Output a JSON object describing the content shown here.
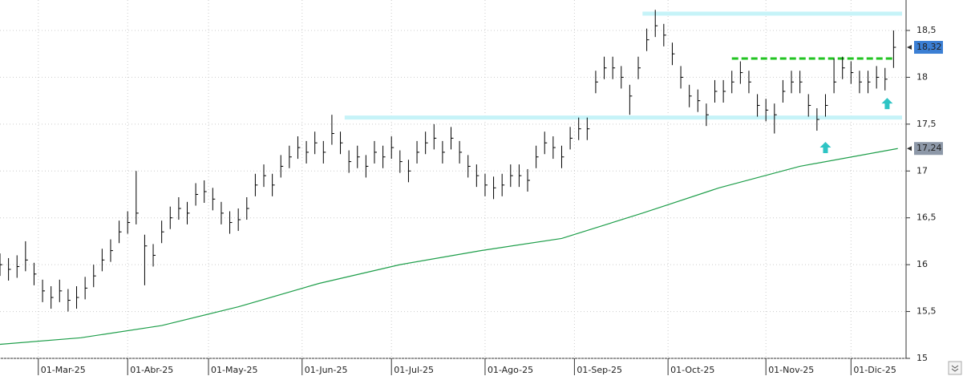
{
  "chart_data": {
    "type": "ohlc",
    "xlim": [
      0,
      212
    ],
    "ylim": [
      15,
      18.825
    ],
    "grid": true,
    "xticks": [
      {
        "value": 9,
        "label": "01-Mar-25"
      },
      {
        "value": 30,
        "label": "01-Abr-25"
      },
      {
        "value": 49,
        "label": "01-May-25"
      },
      {
        "value": 71,
        "label": "01-Jun-25"
      },
      {
        "value": 92,
        "label": "01-Jul-25"
      },
      {
        "value": 114,
        "label": "01-Ago-25"
      },
      {
        "value": 135,
        "label": "01-Sep-25"
      },
      {
        "value": 157,
        "label": "01-Oct-25"
      },
      {
        "value": 180,
        "label": "01-Nov-25"
      },
      {
        "value": 200,
        "label": "01-Dic-25"
      }
    ],
    "yticks": [
      15,
      {
        "value": 15.5,
        "label": "15,5"
      },
      16,
      {
        "value": 16.5,
        "label": "16,5"
      },
      17,
      {
        "value": 17.5,
        "label": "17,5"
      },
      18,
      {
        "value": 18.5,
        "label": "18,5"
      }
    ],
    "bars": {
      "color": "#000000",
      "x": [
        0,
        2,
        4,
        6,
        8,
        10,
        12,
        14,
        16,
        18,
        20,
        22,
        24,
        26,
        28,
        30,
        32,
        34,
        36,
        38,
        40,
        42,
        44,
        46,
        48,
        50,
        52,
        54,
        56,
        58,
        60,
        62,
        64,
        66,
        68,
        70,
        72,
        74,
        76,
        78,
        80,
        82,
        84,
        86,
        88,
        90,
        92,
        94,
        96,
        98,
        100,
        102,
        104,
        106,
        108,
        110,
        112,
        114,
        116,
        118,
        120,
        122,
        124,
        126,
        128,
        130,
        132,
        134,
        136,
        138,
        140,
        142,
        144,
        146,
        148,
        150,
        152,
        154,
        156,
        158,
        160,
        162,
        164,
        166,
        168,
        170,
        172,
        174,
        176,
        178,
        180,
        182,
        184,
        186,
        188,
        190,
        192,
        194,
        196,
        198,
        200,
        202,
        204,
        206,
        208,
        210
      ],
      "high": [
        16.12,
        16.07,
        16.1,
        16.25,
        16.02,
        15.84,
        15.77,
        15.84,
        15.74,
        15.77,
        15.87,
        16.0,
        16.17,
        16.27,
        16.47,
        16.57,
        17.0,
        16.32,
        16.22,
        16.47,
        16.62,
        16.72,
        16.67,
        16.87,
        16.9,
        16.82,
        16.67,
        16.57,
        16.6,
        16.72,
        16.97,
        17.07,
        16.97,
        17.17,
        17.27,
        17.37,
        17.32,
        17.42,
        17.32,
        17.6,
        17.42,
        17.22,
        17.27,
        17.17,
        17.32,
        17.27,
        17.37,
        17.22,
        17.12,
        17.32,
        17.42,
        17.5,
        17.32,
        17.47,
        17.32,
        17.17,
        17.07,
        16.97,
        16.94,
        16.97,
        17.07,
        17.07,
        17.02,
        17.27,
        17.42,
        17.37,
        17.27,
        17.47,
        17.57,
        17.57,
        18.07,
        18.22,
        18.22,
        18.12,
        17.92,
        18.22,
        18.52,
        18.72,
        18.57,
        18.37,
        18.12,
        17.92,
        17.87,
        17.72,
        17.97,
        17.97,
        18.07,
        18.17,
        18.07,
        17.82,
        17.77,
        17.72,
        17.97,
        18.07,
        18.07,
        17.82,
        17.67,
        17.82,
        18.2,
        18.22,
        18.17,
        18.07,
        18.07,
        18.12,
        18.1,
        18.5
      ],
      "low": [
        15.88,
        15.83,
        15.86,
        15.93,
        15.78,
        15.6,
        15.53,
        15.6,
        15.5,
        15.53,
        15.63,
        15.76,
        15.93,
        16.03,
        16.23,
        16.33,
        16.43,
        15.78,
        15.98,
        16.23,
        16.38,
        16.48,
        16.43,
        16.63,
        16.66,
        16.58,
        16.43,
        16.33,
        16.36,
        16.48,
        16.73,
        16.83,
        16.73,
        16.93,
        17.03,
        17.13,
        17.08,
        17.18,
        17.08,
        17.28,
        17.18,
        16.98,
        17.03,
        16.93,
        17.08,
        17.03,
        17.13,
        16.98,
        16.88,
        17.08,
        17.18,
        17.23,
        17.08,
        17.23,
        17.08,
        16.93,
        16.83,
        16.73,
        16.7,
        16.73,
        16.83,
        16.83,
        16.78,
        17.03,
        17.18,
        17.13,
        17.03,
        17.23,
        17.33,
        17.33,
        17.83,
        17.98,
        17.98,
        17.88,
        17.6,
        17.98,
        18.28,
        18.43,
        18.33,
        18.13,
        17.88,
        17.68,
        17.63,
        17.48,
        17.73,
        17.73,
        17.83,
        17.93,
        17.83,
        17.58,
        17.53,
        17.4,
        17.73,
        17.83,
        17.83,
        17.58,
        17.43,
        17.58,
        17.83,
        17.98,
        17.93,
        17.83,
        17.83,
        17.88,
        17.86,
        18.1
      ],
      "close": [
        16.0,
        15.95,
        15.98,
        16.05,
        15.9,
        15.72,
        15.65,
        15.72,
        15.62,
        15.65,
        15.75,
        15.88,
        16.05,
        16.15,
        16.35,
        16.45,
        16.55,
        16.2,
        16.1,
        16.35,
        16.5,
        16.6,
        16.55,
        16.75,
        16.78,
        16.7,
        16.55,
        16.45,
        16.48,
        16.6,
        16.85,
        16.95,
        16.85,
        17.05,
        17.15,
        17.25,
        17.2,
        17.3,
        17.2,
        17.4,
        17.3,
        17.1,
        17.15,
        17.05,
        17.2,
        17.15,
        17.25,
        17.1,
        17.0,
        17.2,
        17.3,
        17.35,
        17.2,
        17.35,
        17.2,
        17.05,
        16.95,
        16.85,
        16.82,
        16.85,
        16.95,
        16.95,
        16.9,
        17.15,
        17.3,
        17.25,
        17.15,
        17.35,
        17.45,
        17.45,
        17.95,
        18.1,
        18.1,
        18.0,
        17.8,
        18.1,
        18.4,
        18.55,
        18.45,
        18.25,
        18.0,
        17.8,
        17.75,
        17.6,
        17.85,
        17.85,
        17.95,
        18.05,
        17.95,
        17.7,
        17.65,
        17.6,
        17.85,
        17.95,
        17.95,
        17.7,
        17.55,
        17.7,
        17.95,
        18.1,
        18.05,
        17.95,
        17.95,
        18.0,
        17.98,
        18.32
      ]
    },
    "moving_average": {
      "color": "#1e9e4a",
      "x": [
        0,
        19,
        38,
        56,
        75,
        94,
        113,
        132,
        151,
        169,
        188,
        211
      ],
      "values": [
        15.15,
        15.22,
        15.35,
        15.55,
        15.8,
        16.0,
        16.15,
        16.28,
        16.55,
        16.82,
        17.05,
        17.24
      ]
    },
    "levels": [
      {
        "y": 18.68,
        "x": [
          151,
          212
        ],
        "color": "#c6f3f8",
        "dashed": false
      },
      {
        "y": 17.57,
        "x": [
          81,
          212
        ],
        "color": "#c6f3f8",
        "dashed": false
      },
      {
        "y": 18.2,
        "x": [
          172,
          210
        ],
        "color": "#22c422",
        "dashed": true
      }
    ],
    "signals": {
      "color": "#2ec4c4",
      "x": [
        194,
        208.5
      ],
      "y": [
        17.25,
        17.72
      ]
    },
    "last_price": {
      "value": 18.32,
      "label": "18,32",
      "color": "#3b7fd4"
    },
    "ma_last": {
      "value": 17.24,
      "label": "17,24",
      "color": "#8d98a8"
    }
  }
}
